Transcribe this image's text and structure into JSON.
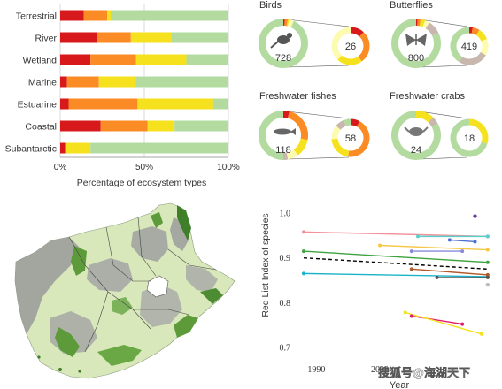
{
  "colors": {
    "CR": "#d7191c",
    "EN": "#fb8b24",
    "VU": "#f6e11e",
    "NT": "#fdfbb0",
    "LC": "#b3dba0",
    "DD": "#c9b7ae",
    "grid": "#d0d0d0",
    "map_land": "#d8e8bb",
    "map_protected": "#5c9a3a",
    "map_degraded": "#9a9a9a"
  },
  "bar_panel": {
    "categories": [
      "Terrestrial",
      "River",
      "Wetland",
      "Marine",
      "Estuarine",
      "Coastal",
      "Subantarctic"
    ],
    "series": [
      {
        "key": "CR",
        "values": [
          14,
          22,
          18,
          4,
          5,
          24,
          3
        ]
      },
      {
        "key": "EN",
        "values": [
          14,
          20,
          27,
          19,
          41,
          28,
          0
        ]
      },
      {
        "key": "VU",
        "values": [
          2,
          24,
          30,
          22,
          45,
          16,
          15
        ]
      },
      {
        "key": "LC",
        "values": [
          70,
          34,
          25,
          55,
          9,
          32,
          82
        ]
      }
    ],
    "x_ticks": [
      "0%",
      "50%",
      "100%"
    ],
    "xlabel": "Percentage of ecosystem types"
  },
  "donut_panels": [
    {
      "title": "Birds",
      "species_count": "728",
      "threatened_count": "26",
      "icon": "bird-icon",
      "big": {
        "CR": 1,
        "EN": 2,
        "VU": 1,
        "NT": 3,
        "LC": 93,
        "DD": 0
      },
      "small": {
        "CR": 12,
        "EN": 28,
        "VU": 22,
        "NT": 38
      }
    },
    {
      "title": "Butterflies",
      "species_count": "800",
      "threatened_count": "419",
      "icon": "butterfly-icon",
      "big": {
        "CR": 1,
        "EN": 2,
        "VU": 3,
        "NT": 3,
        "DD": 9,
        "LC": 82
      },
      "small": {
        "CR": 3,
        "EN": 6,
        "VU": 10,
        "NT": 14,
        "DD": 26,
        "LC": 41
      }
    },
    {
      "title": "Freshwater fishes",
      "species_count": "118",
      "threatened_count": "58",
      "icon": "fish-icon",
      "big": {
        "CR": 4,
        "EN": 24,
        "VU": 12,
        "NT": 7,
        "DD": 3,
        "LC": 50
      },
      "small": {
        "CR": 8,
        "EN": 44,
        "VU": 22,
        "NT": 12,
        "DD": 8,
        "LC": 6
      }
    },
    {
      "title": "Freshwater crabs",
      "species_count": "24",
      "threatened_count": "18",
      "icon": "crab-icon",
      "big": {
        "VU": 12,
        "DD": 5,
        "LC": 83
      },
      "small": {
        "VU": 30,
        "LC": 70
      }
    }
  ],
  "chart_data": {
    "type": "line",
    "ylabel": "Red List Index of species",
    "xlabel": "Year",
    "x_ticks": [
      1990,
      2000
    ],
    "y_ticks": [
      0.7,
      0.8,
      0.9,
      1.0
    ],
    "xlim": [
      1988,
      2018
    ],
    "ylim": [
      0.68,
      1.01
    ],
    "series": [
      {
        "color": "#f2919a",
        "points": [
          [
            1988,
            0.958
          ],
          [
            2017,
            0.948
          ]
        ]
      },
      {
        "color": "#5ccfc8",
        "points": [
          [
            2006,
            0.948
          ],
          [
            2017,
            0.948
          ]
        ]
      },
      {
        "color": "#f6c845",
        "points": [
          [
            2000,
            0.928
          ],
          [
            2017,
            0.918
          ]
        ]
      },
      {
        "color": "#4d6fd0",
        "points": [
          [
            2011,
            0.94
          ],
          [
            2015,
            0.936
          ]
        ]
      },
      {
        "color": "#3fa23f",
        "points": [
          [
            1988,
            0.915
          ],
          [
            2017,
            0.89
          ]
        ]
      },
      {
        "color": "#8a8ad8",
        "points": [
          [
            2005,
            0.915
          ],
          [
            2013,
            0.915
          ]
        ]
      },
      {
        "color": "#1ab3c9",
        "points": [
          [
            1988,
            0.865
          ],
          [
            2017,
            0.858
          ]
        ]
      },
      {
        "color": "#b15928",
        "points": [
          [
            2005,
            0.875
          ],
          [
            2017,
            0.862
          ]
        ]
      },
      {
        "color": "#555555",
        "points": [
          [
            2009,
            0.856
          ],
          [
            2017,
            0.856
          ]
        ]
      },
      {
        "color": "#e41a6e",
        "points": [
          [
            2005,
            0.77
          ],
          [
            2013,
            0.752
          ]
        ]
      },
      {
        "color": "#f4e21e",
        "points": [
          [
            2004,
            0.778
          ],
          [
            2016,
            0.73
          ]
        ]
      },
      {
        "color": "#000000",
        "dashed": true,
        "points": [
          [
            1988,
            0.9
          ],
          [
            2017,
            0.875
          ]
        ]
      }
    ],
    "points": [
      {
        "color": "#6a3d9a",
        "x": 2015,
        "y": 0.993
      },
      {
        "color": "#bdbdbd",
        "x": 2017,
        "y": 0.84
      }
    ]
  },
  "watermark": "搜狐号@海湖天下"
}
